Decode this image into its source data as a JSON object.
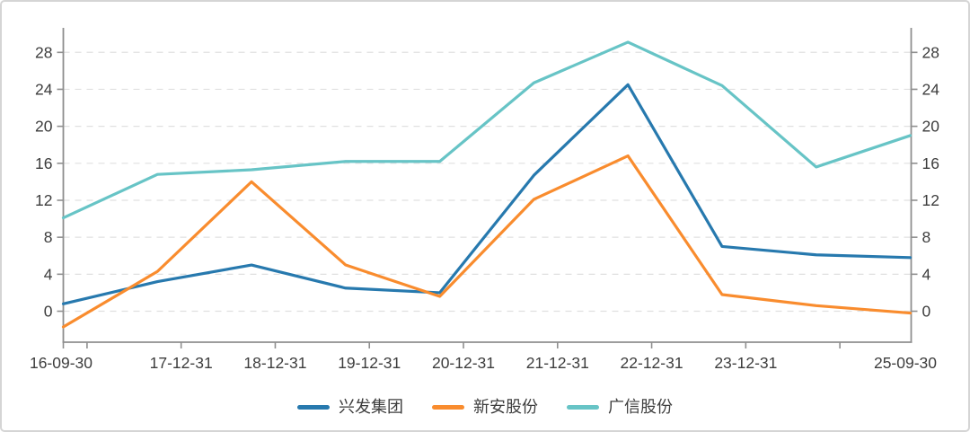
{
  "chart_data": {
    "type": "line",
    "title": "",
    "x_labels": [
      "16-09-30",
      "17-12-31",
      "18-12-31",
      "19-12-31",
      "20-12-31",
      "21-12-31",
      "22-12-31",
      "23-12-31",
      "",
      "25-09-30"
    ],
    "series": [
      {
        "name": "兴发集团",
        "color": "#2779ae",
        "values": [
          0.8,
          3.2,
          5.0,
          2.5,
          2.0,
          14.7,
          24.5,
          7.0,
          6.1,
          5.8
        ]
      },
      {
        "name": "新安股份",
        "color": "#f98c2e",
        "values": [
          -1.7,
          4.3,
          14.0,
          5.0,
          1.6,
          12.1,
          16.8,
          1.8,
          0.6,
          -0.2
        ]
      },
      {
        "name": "广信股份",
        "color": "#67c4c6",
        "values": [
          10.1,
          14.8,
          15.3,
          16.2,
          16.2,
          24.7,
          29.1,
          24.4,
          15.6,
          19.0
        ]
      }
    ],
    "y_ticks": [
      0,
      4,
      8,
      12,
      16,
      20,
      24,
      28
    ],
    "ylim": [
      -3.35,
      30.65
    ],
    "dual_y_axis": true,
    "grid": "horizontal-dashed",
    "legend_position": "bottom",
    "axis_color": "#8f8f8f",
    "grid_color": "#e0e0e0",
    "label_color": "#3d3d3d"
  }
}
